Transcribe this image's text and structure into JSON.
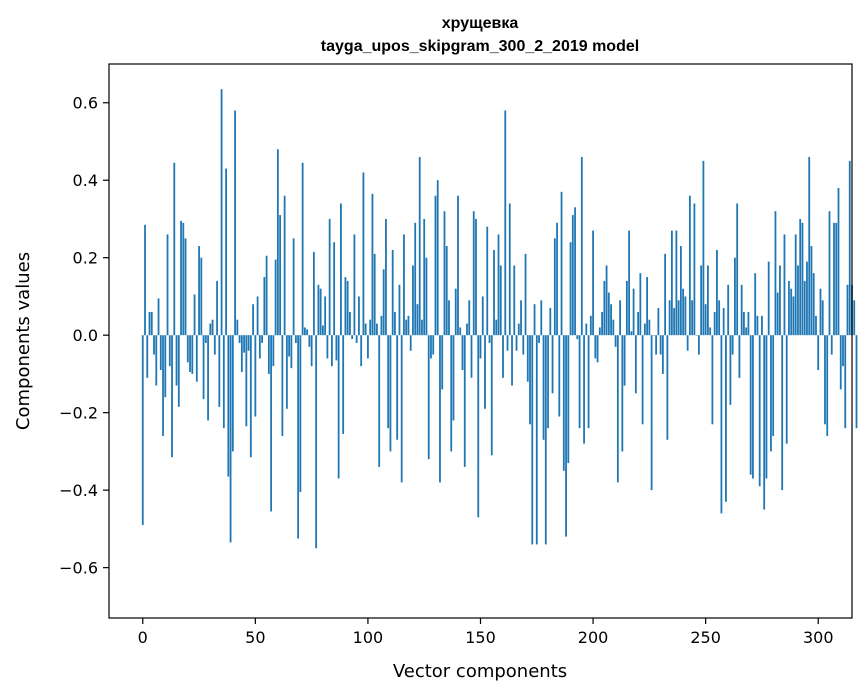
{
  "chart_data": {
    "type": "bar",
    "title_line1": "хрущевка",
    "title_line2": "tayga_upos_skipgram_300_2_2019 model",
    "xlabel": "Vector components",
    "ylabel": "Components values",
    "xlim": [
      -15,
      315
    ],
    "ylim": [
      -0.73,
      0.7
    ],
    "xticks": [
      0,
      50,
      100,
      150,
      200,
      250,
      300
    ],
    "xtick_labels": [
      "0",
      "50",
      "100",
      "150",
      "200",
      "250",
      "300"
    ],
    "yticks": [
      -0.6,
      -0.4,
      -0.2,
      0.0,
      0.2,
      0.4,
      0.6
    ],
    "ytick_labels": [
      "−0.6",
      "−0.4",
      "−0.2",
      "0.0",
      "0.2",
      "0.4",
      "0.6"
    ],
    "bar_color": "#1f77b4",
    "values": [
      -0.49,
      0.285,
      -0.11,
      0.06,
      0.06,
      -0.05,
      -0.13,
      0.095,
      -0.09,
      -0.26,
      -0.16,
      0.26,
      -0.08,
      -0.315,
      0.445,
      -0.13,
      -0.185,
      0.295,
      0.29,
      0.25,
      -0.07,
      -0.095,
      -0.1,
      0.105,
      -0.12,
      0.23,
      0.2,
      -0.165,
      -0.02,
      -0.22,
      0.03,
      0.04,
      -0.05,
      0.14,
      -0.185,
      0.635,
      -0.24,
      0.43,
      -0.365,
      -0.535,
      -0.3,
      0.58,
      0.04,
      -0.02,
      -0.095,
      -0.045,
      -0.235,
      -0.04,
      -0.315,
      0.08,
      -0.21,
      0.1,
      -0.06,
      -0.02,
      0.15,
      0.205,
      -0.1,
      -0.455,
      -0.08,
      0.195,
      0.48,
      0.31,
      -0.26,
      0.36,
      -0.19,
      -0.055,
      -0.085,
      0.25,
      -0.02,
      -0.525,
      -0.405,
      0.445,
      0.02,
      0.015,
      -0.03,
      -0.08,
      0.215,
      -0.55,
      0.13,
      0.12,
      0.025,
      0.1,
      -0.06,
      0.3,
      -0.08,
      0.24,
      -0.065,
      -0.37,
      0.34,
      -0.255,
      0.15,
      0.14,
      0.06,
      -0.01,
      0.26,
      -0.02,
      0.1,
      -0.08,
      0.42,
      0.03,
      -0.06,
      0.04,
      0.365,
      0.21,
      0.03,
      -0.34,
      0.05,
      0.17,
      0.3,
      -0.24,
      -0.3,
      0.22,
      0.06,
      -0.27,
      0.13,
      -0.38,
      0.26,
      0.04,
      0.05,
      -0.04,
      0.18,
      0.29,
      0.08,
      0.46,
      0.04,
      0.3,
      0.2,
      -0.32,
      -0.06,
      -0.05,
      0.36,
      0.4,
      -0.38,
      -0.14,
      0.32,
      0.23,
      0.09,
      -0.3,
      -0.22,
      0.12,
      0.36,
      0.02,
      -0.09,
      -0.34,
      0.03,
      0.09,
      -0.11,
      0.32,
      0.3,
      -0.47,
      -0.06,
      0.1,
      -0.19,
      0.28,
      -0.02,
      -0.31,
      0.22,
      0.04,
      0.26,
      0.18,
      -0.11,
      0.58,
      -0.04,
      0.34,
      -0.13,
      0.18,
      -0.04,
      0.03,
      0.09,
      -0.05,
      0.21,
      -0.12,
      -0.23,
      -0.54,
      0.08,
      -0.54,
      -0.02,
      0.09,
      -0.27,
      -0.54,
      -0.24,
      0.07,
      -0.15,
      0.25,
      0.29,
      -0.21,
      0.37,
      -0.35,
      -0.52,
      -0.33,
      0.24,
      0.31,
      0.33,
      -0.01,
      -0.24,
      0.46,
      -0.28,
      0.03,
      -0.24,
      0.05,
      0.27,
      -0.06,
      -0.07,
      0.02,
      0.06,
      0.14,
      0.18,
      0.11,
      0.08,
      0.04,
      -0.03,
      -0.38,
      0.09,
      -0.3,
      -0.13,
      0.14,
      0.27,
      0.01,
      0.12,
      -0.15,
      0.06,
      0.16,
      -0.23,
      0.03,
      0.15,
      0.04,
      -0.4,
      0.0,
      -0.05,
      0.07,
      -0.05,
      -0.1,
      0.21,
      -0.27,
      0.09,
      0.27,
      0.07,
      0.27,
      0.09,
      0.23,
      0.12,
      0.1,
      -0.04,
      0.36,
      0.09,
      0.34,
      0.0,
      -0.05,
      0.18,
      0.45,
      0.08,
      0.18,
      0.02,
      -0.23,
      0.06,
      0.22,
      0.09,
      -0.46,
      0.07,
      -0.43,
      0.13,
      -0.18,
      -0.05,
      0.2,
      0.34,
      -0.11,
      0.13,
      0.06,
      0.02,
      0.06,
      -0.36,
      -0.37,
      0.16,
      0.05,
      -0.39,
      0.05,
      -0.45,
      -0.37,
      0.19,
      -0.3,
      -0.26,
      0.32,
      0.11,
      0.18,
      -0.4,
      0.26,
      -0.28,
      0.14,
      0.12,
      0.1,
      0.26,
      0.18,
      0.3,
      0.29,
      0.14,
      0.19,
      0.46,
      0.23,
      0.16,
      0.05,
      -0.09,
      0.12,
      0.09,
      -0.23,
      -0.26,
      0.32,
      -0.05,
      0.29,
      0.29,
      0.38,
      -0.14,
      -0.08,
      -0.24,
      0.13,
      0.45,
      0.13,
      0.09,
      -0.24
    ]
  }
}
